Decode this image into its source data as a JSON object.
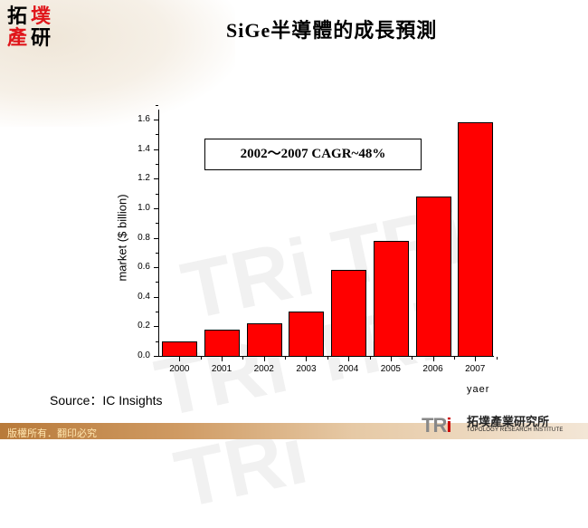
{
  "slide": {
    "title": "SiGe半導體的成長預測",
    "logo": {
      "chars": [
        "拓",
        "墣",
        "產",
        "研"
      ]
    },
    "cagr_annotation": "2002～2007 CAGR~48%",
    "source": "Source：IC Insights",
    "footer_copyright": "版權所有．翻印必究",
    "brand": {
      "mark_tr": "TR",
      "mark_i": "i",
      "name_cn": "拓墣產業研究所",
      "name_en": "TOPOLOGY RESEARCH INSTITUTE"
    },
    "colors": {
      "bar": "#ff0000",
      "logo_red": "#e0151a",
      "footer": "#c58a4c"
    }
  },
  "chart_data": {
    "type": "bar",
    "title": "SiGe半導體的成長預測",
    "categories": [
      "2000",
      "2001",
      "2002",
      "2003",
      "2004",
      "2005",
      "2006",
      "2007"
    ],
    "values": [
      0.1,
      0.18,
      0.22,
      0.3,
      0.58,
      0.78,
      1.08,
      1.58
    ],
    "xlabel": "yaer",
    "ylabel": "market ($ billion)",
    "ylim": [
      0,
      1.7
    ],
    "yticks": [
      "0.0",
      "0.2",
      "0.4",
      "0.6",
      "0.8",
      "1.0",
      "1.2",
      "1.4",
      "1.6"
    ],
    "grid": false,
    "legend": null,
    "annotations": [
      "2002～2007 CAGR~48%"
    ],
    "series_color": "#ff0000"
  }
}
